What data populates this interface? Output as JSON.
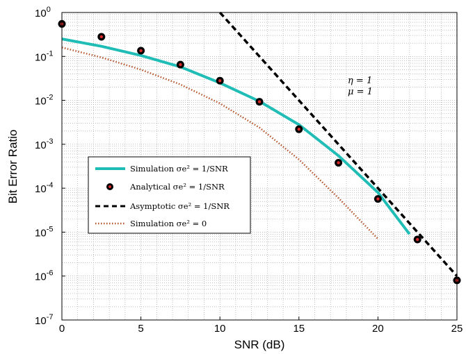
{
  "chart_data": {
    "type": "line",
    "xlabel": "SNR (dB)",
    "ylabel": "Bit Error Ratio",
    "xlim": [
      0,
      25
    ],
    "ylim_exponent": [
      -7,
      0
    ],
    "yscale": "log",
    "grid": true,
    "legend_placement": "lower-left",
    "x_ticks": [
      "0",
      "5",
      "10",
      "15",
      "20",
      "25"
    ],
    "y_ticks": [
      {
        "base": "10",
        "exp": "0"
      },
      {
        "base": "10",
        "exp": "-1"
      },
      {
        "base": "10",
        "exp": "-2"
      },
      {
        "base": "10",
        "exp": "-3"
      },
      {
        "base": "10",
        "exp": "-4"
      },
      {
        "base": "10",
        "exp": "-5"
      },
      {
        "base": "10",
        "exp": "-6"
      },
      {
        "base": "10",
        "exp": "-7"
      }
    ],
    "annotations": [
      "η = 1",
      "μ = 1"
    ],
    "series": [
      {
        "name": "Simulation σe² = 1/SNR",
        "style": "solid",
        "color": "#1fbdb6",
        "x": [
          0,
          2.5,
          5,
          7.5,
          10,
          12.5,
          15,
          17.5,
          20,
          22
        ],
        "y": [
          0.25,
          0.17,
          0.105,
          0.058,
          0.025,
          0.0095,
          0.0028,
          0.00055,
          8e-05,
          9e-06
        ]
      },
      {
        "name": "Analytical σe² = 1/SNR",
        "style": "markers",
        "color": "#000000",
        "marker_inner": "#d92a2a",
        "x": [
          0,
          2.5,
          5,
          7.5,
          10,
          12.5,
          15,
          17.5,
          20,
          22.5,
          25
        ],
        "y": [
          0.55,
          0.28,
          0.135,
          0.065,
          0.028,
          0.0093,
          0.0022,
          0.00038,
          5.7e-05,
          6.8e-06,
          8e-07
        ]
      },
      {
        "name": "Asymptotic σe² = 1/SNR",
        "style": "dashed",
        "color": "#000000",
        "x": [
          10,
          12.5,
          15,
          17.5,
          20,
          22.5,
          25
        ],
        "y": [
          1.0,
          0.1,
          0.01,
          0.001,
          0.0001,
          1e-05,
          1e-06
        ]
      },
      {
        "name": "Simulation σe² = 0",
        "style": "dotted",
        "color": "#b5532b",
        "x": [
          0,
          2.5,
          5,
          7.5,
          10,
          12.5,
          15,
          17.5,
          20
        ],
        "y": [
          0.16,
          0.095,
          0.05,
          0.023,
          0.0085,
          0.0024,
          0.00045,
          6e-05,
          7e-06
        ]
      }
    ]
  }
}
